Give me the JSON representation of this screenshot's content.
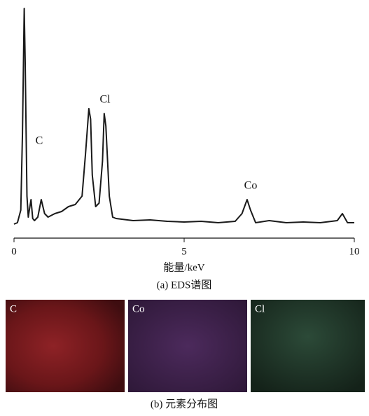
{
  "chart_data": {
    "type": "line",
    "x": [
      0.0,
      0.1,
      0.2,
      0.25,
      0.3,
      0.33,
      0.38,
      0.42,
      0.45,
      0.5,
      0.55,
      0.6,
      0.7,
      0.8,
      0.9,
      1.0,
      1.2,
      1.4,
      1.6,
      1.8,
      2.0,
      2.1,
      2.2,
      2.25,
      2.3,
      2.4,
      2.5,
      2.6,
      2.65,
      2.7,
      2.8,
      2.9,
      3.0,
      3.5,
      4.0,
      4.5,
      5.0,
      5.5,
      6.0,
      6.5,
      6.7,
      6.85,
      6.95,
      7.1,
      7.5,
      8.0,
      8.5,
      9.0,
      9.5,
      9.65,
      9.8,
      10.0
    ],
    "series": [
      {
        "color": "#1a1a1a",
        "values": [
          20,
          22,
          40,
          150,
          328,
          250,
          60,
          30,
          40,
          55,
          28,
          25,
          30,
          55,
          35,
          30,
          35,
          38,
          45,
          48,
          60,
          120,
          185,
          170,
          90,
          45,
          50,
          110,
          178,
          160,
          60,
          30,
          28,
          25,
          26,
          24,
          23,
          24,
          22,
          24,
          35,
          55,
          40,
          22,
          25,
          22,
          23,
          22,
          25,
          35,
          22,
          22
        ]
      }
    ],
    "xlim": [
      0,
      10
    ],
    "xticks": [
      0,
      5,
      10
    ],
    "ylim": [
      0,
      330
    ],
    "xlabel": "能量/keV",
    "annotations": [
      "C",
      "Cl",
      "Co"
    ],
    "caption": "(a) EDS谱图"
  },
  "maps": {
    "panels": [
      {
        "label": "C"
      },
      {
        "label": "Co"
      },
      {
        "label": "Cl"
      }
    ],
    "caption": "(b) 元素分布图"
  }
}
